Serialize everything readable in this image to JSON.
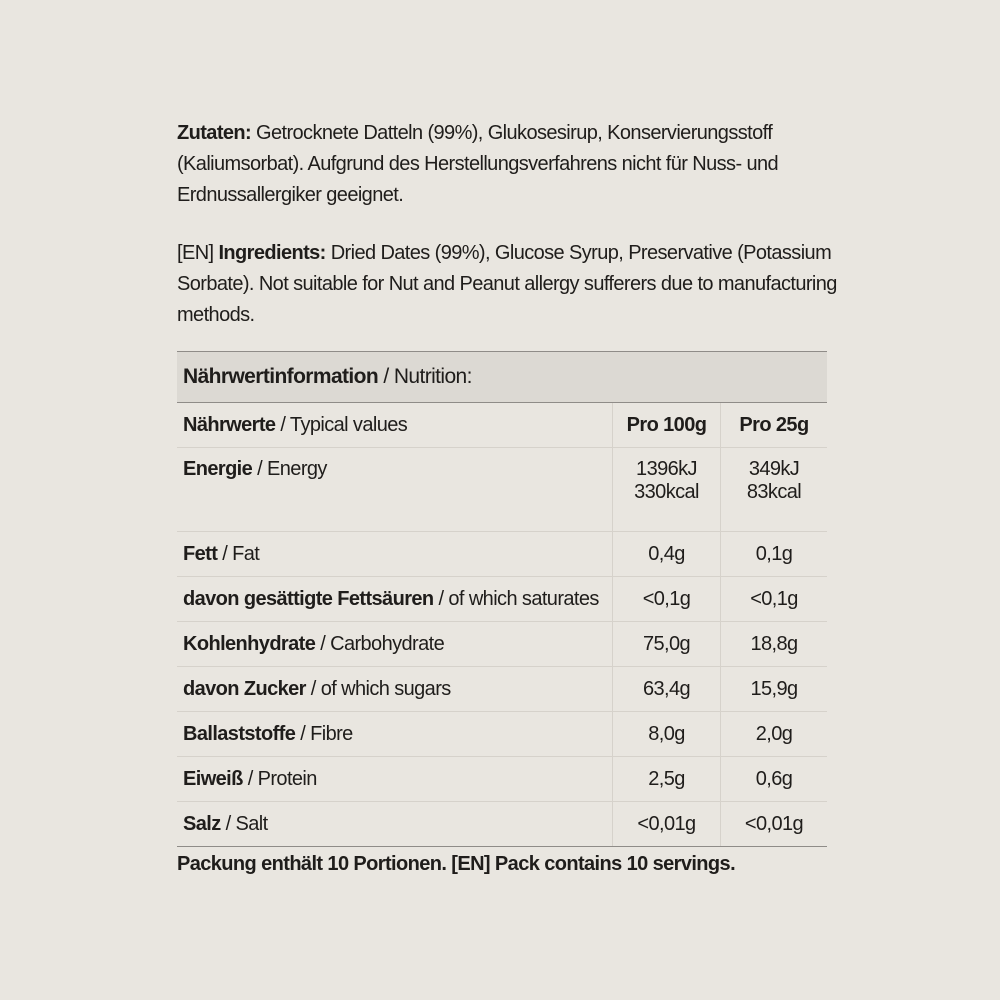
{
  "ingredients_de": {
    "label": "Zutaten:",
    "text": " Getrocknete Datteln (99%), Glukosesirup, Konservierungsstoff (Kaliumsorbat). Aufgrund des Herstellungsverfahrens nicht für Nuss- und Erdnussallergiker geeignet."
  },
  "ingredients_en": {
    "prefix": "[EN] ",
    "label": "Ingredients:",
    "text": " Dried Dates (99%), Glucose Syrup, Preservative (Potassium Sorbate). Not suitable for Nut and Peanut allergy sufferers due to manufacturing methods."
  },
  "table": {
    "title_de": "Nährwertinformation",
    "title_en": " / Nutrition:",
    "header": {
      "de": "Nährwerte",
      "en": " / Typical values",
      "col1": "Pro 100g",
      "col2": "Pro 25g"
    },
    "energy": {
      "de": "Energie",
      "en": " / Energy",
      "v1a": "1396kJ",
      "v1b": "330kcal",
      "v2a": "349kJ",
      "v2b": "83kcal"
    },
    "rows": [
      {
        "de": "Fett",
        "en": " / Fat",
        "v1": "0,4g",
        "v2": "0,1g"
      },
      {
        "de": "davon gesättigte Fettsäuren",
        "en": " / of which saturates",
        "v1": "<0,1g",
        "v2": "<0,1g"
      },
      {
        "de": "Kohlenhydrate",
        "en": " / Carbohydrate",
        "v1": "75,0g",
        "v2": "18,8g"
      },
      {
        "de": "davon Zucker",
        "en": " / of which sugars",
        "v1": "63,4g",
        "v2": "15,9g"
      },
      {
        "de": "Ballaststoffe",
        "en": " / Fibre",
        "v1": "8,0g",
        "v2": "2,0g"
      },
      {
        "de": "Eiweiß",
        "en": " / Protein",
        "v1": "2,5g",
        "v2": "0,6g"
      },
      {
        "de": "Salz",
        "en": " / Salt",
        "v1": "<0,01g",
        "v2": "<0,01g"
      }
    ]
  },
  "footer": "Packung enthält 10 Portionen. [EN] Pack contains 10 servings."
}
